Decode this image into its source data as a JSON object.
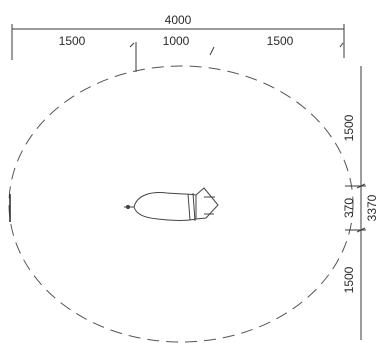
{
  "dimensions": {
    "overall_width": "4000",
    "left_segment": "1500",
    "middle_segment": "1000",
    "right_segment": "1500",
    "upper_segment": "1500",
    "center_segment": "370",
    "lower_segment": "1500",
    "overall_height": "3370"
  }
}
